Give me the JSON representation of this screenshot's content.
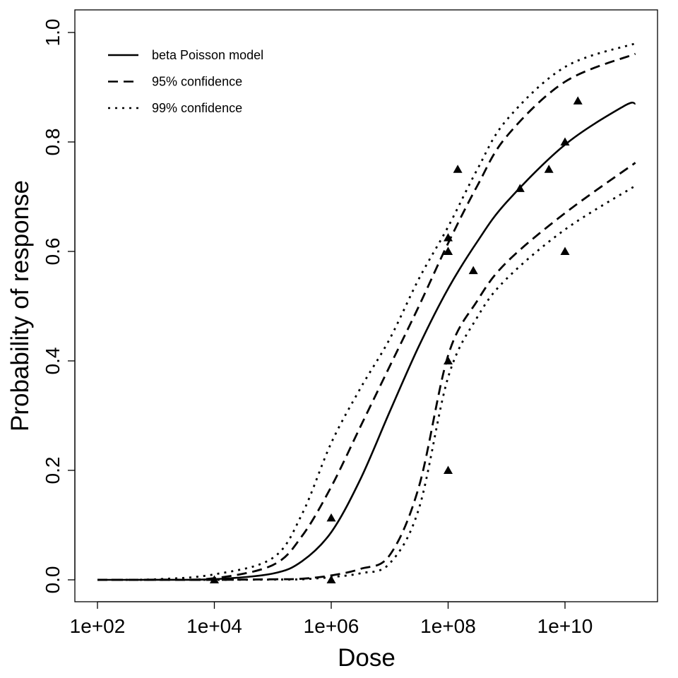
{
  "chart_data": {
    "type": "line",
    "title": "",
    "xlabel": "Dose",
    "ylabel": "Probability of response",
    "x_scale": "log",
    "xlim": [
      100,
      160000000000
    ],
    "ylim": [
      0,
      1
    ],
    "x_ticks": [
      100,
      10000,
      1000000,
      100000000,
      10000000000
    ],
    "x_tick_labels": [
      "1e+02",
      "1e+04",
      "1e+06",
      "1e+08",
      "1e+10"
    ],
    "y_ticks": [
      0,
      0.2,
      0.4,
      0.6,
      0.8,
      1.0
    ],
    "y_tick_labels": [
      "0.0",
      "0.2",
      "0.4",
      "0.6",
      "0.8",
      "1.0"
    ],
    "grid": false,
    "legend_position": "top-left",
    "series": [
      {
        "name": "beta Poisson model",
        "style": "solid",
        "x": [
          100,
          1000,
          10000,
          100000,
          316228,
          1000000,
          3162278,
          10000000,
          31622777,
          100000000,
          316227766,
          1000000000,
          10000000000,
          100000000000,
          160000000000
        ],
        "y": [
          0,
          0.0001,
          0.0012,
          0.0115,
          0.034,
          0.087,
          0.184,
          0.307,
          0.427,
          0.532,
          0.618,
          0.69,
          0.795,
          0.865,
          0.87
        ]
      },
      {
        "name": "95% confidence",
        "style": "dashed",
        "x": [
          100,
          1000,
          10000,
          100000,
          316228,
          1000000,
          3162278,
          10000000,
          31622777,
          100000000,
          316227766,
          1000000000,
          10000000000,
          160000000000
        ],
        "y": [
          0,
          0.0003,
          0.003,
          0.027,
          0.08,
          0.17,
          0.28,
          0.39,
          0.5,
          0.615,
          0.72,
          0.81,
          0.91,
          0.961
        ]
      },
      {
        "name": "",
        "style": "dashed",
        "x": [
          100,
          1000,
          10000,
          100000,
          316228,
          1000000,
          3162278,
          10000000,
          31622777,
          100000000,
          316227766,
          1000000000,
          10000000000,
          160000000000
        ],
        "y": [
          0,
          0,
          0,
          0.001,
          0.002,
          0.008,
          0.02,
          0.045,
          0.17,
          0.41,
          0.51,
          0.58,
          0.67,
          0.762
        ]
      },
      {
        "name": "99% confidence",
        "style": "dotted",
        "x": [
          100,
          1000,
          10000,
          100000,
          316228,
          1000000,
          3162278,
          10000000,
          31622777,
          100000000,
          316227766,
          1000000000,
          10000000000,
          160000000000
        ],
        "y": [
          0,
          0.001,
          0.01,
          0.04,
          0.12,
          0.25,
          0.35,
          0.44,
          0.55,
          0.645,
          0.75,
          0.84,
          0.937,
          0.98
        ]
      },
      {
        "name": "",
        "style": "dotted",
        "x": [
          100,
          1000,
          10000,
          100000,
          316228,
          1000000,
          3162278,
          10000000,
          31622777,
          100000000,
          316227766,
          1000000000,
          10000000000,
          160000000000
        ],
        "y": [
          0,
          0,
          0,
          0.0005,
          0.001,
          0.005,
          0.012,
          0.03,
          0.13,
          0.37,
          0.48,
          0.55,
          0.64,
          0.72
        ]
      }
    ],
    "points": {
      "marker": "filled-triangle",
      "x": [
        10000,
        1000000,
        1000000,
        100000000,
        100000000,
        100000000,
        100000000,
        100000000,
        146000000,
        270000000,
        1700000000,
        5300000000,
        10000000000,
        10000000000,
        16600000000
      ],
      "y": [
        0,
        0.113,
        0,
        0.625,
        0.6,
        0.6,
        0.4,
        0.2,
        0.75,
        0.565,
        0.715,
        0.75,
        0.8,
        0.6,
        0.875
      ]
    }
  },
  "legend": {
    "items": [
      {
        "label": "beta Poisson model",
        "style": "solid"
      },
      {
        "label": "95% confidence",
        "style": "dashed"
      },
      {
        "label": "99% confidence",
        "style": "dotted"
      }
    ]
  }
}
